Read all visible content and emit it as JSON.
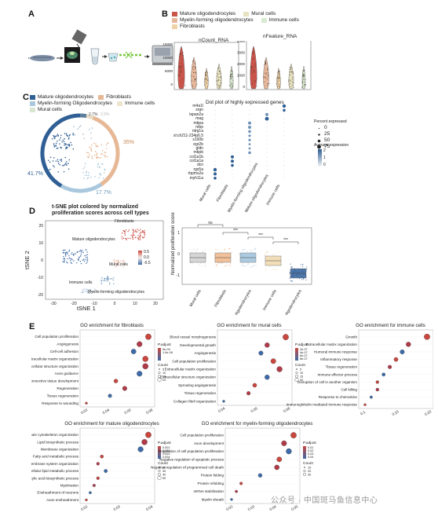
{
  "panels": {
    "A": "A",
    "B": "B",
    "C": "C",
    "D": "D",
    "E": "E"
  },
  "colors": {
    "mature": "#3a6ea8",
    "myelin": "#b7d3e2",
    "fibro": "#e0aa84",
    "mural": "#a8c7b4",
    "immune": "#d7d5a8",
    "red": "#c9473e",
    "legend_mature_b": "#c9544a",
    "legend_myelin_b": "#e6b79a",
    "legend_fibro_b": "#efd3a8",
    "legend_mural_b": "#e7e3c0",
    "legend_immune_b": "#d7ead0"
  },
  "panelB": {
    "legend": [
      "Mature oligodendrocytes",
      "Myelin-forming oligodendrocytes",
      "Fibroblasts",
      "Mural cells",
      "Immune cells"
    ],
    "ncount_title": "nCount_RNA",
    "nfeature_title": "nFeature_RNA",
    "ncount_ticks": [
      "15000",
      "10000",
      "5000",
      "0"
    ],
    "nfeature_ticks": [
      "4000",
      "3000",
      "2000",
      "1000",
      "0"
    ]
  },
  "panelC": {
    "legend": [
      "Mature oligodendrocytes",
      "Fibroblasts",
      "Myelin-forming Oligodendrocytes",
      "Immune cells",
      "Mural cells"
    ],
    "pct_top": "2.7%",
    "pct_top2": "2.9%",
    "pct_right": "35%",
    "pct_left": "41.7%",
    "pct_bottom": "17.7%"
  },
  "dotplot": {
    "title": "Dot plot of highly expressed genes",
    "genes": [
      "m4a1l",
      "srgn",
      "tspan2a",
      "mag",
      "mbpa",
      "mbp",
      "ntrg1a",
      "sl:ch211-234p6.5",
      "s100b",
      "egr2b",
      "gldn",
      "mbpb",
      "col1a1b",
      "col1a1a",
      "dcn",
      "rgs5a",
      "rbpms2a",
      "myh11a"
    ],
    "groups": [
      "Mural cells",
      "Fibroblasts",
      "Myelin-forming oligodendrocytes",
      "Mature oligodendrocytes",
      "Immune cells"
    ],
    "pct_title": "Percent expressed",
    "pct_values": [
      "0",
      "25",
      "50",
      "75"
    ],
    "avg_title": "Average expression",
    "avg_values": [
      "2",
      "1",
      "0"
    ]
  },
  "panelD": {
    "tsne_title_1": "t-SNE plot colored by normalized",
    "tsne_title_2": "proliferation scores across cell types",
    "xlabel": "tSNE 1",
    "ylabel": "tSNE 2",
    "xticks": [
      "-30",
      "-20",
      "-10",
      "0",
      "10",
      "20"
    ],
    "yticks": [
      "20",
      "10",
      "0",
      "-10",
      "-20"
    ],
    "cluster_labels": [
      "Fibroblasts",
      "Mature oligodendrocytes",
      "Mural cells",
      "Immune cells",
      "Myelin-forming oligodendrocytes"
    ],
    "colorbar": [
      "0.5",
      "0.0",
      "-0.5"
    ],
    "box_ylabel": "Normalized proliferation score",
    "box_yticks": [
      "1",
      "0",
      "-1"
    ],
    "box_groups": [
      "Mural cells",
      "Fibroblasts",
      "Myelin-forming oligodendrocytes",
      "Immune cells",
      "Mature oligodendrocytes"
    ],
    "sig": [
      "ns",
      "***",
      "***",
      "***"
    ]
  },
  "panelE": {
    "fib": {
      "title": "GO enrichment for fibroblasts",
      "terms": [
        "Cell population proliferation",
        "Angiogenesis",
        "Cell-cell adhesion",
        "Extracellular matrix organization",
        "Extracellular structure organization",
        "Axon guidance",
        "Connective tissue development",
        "Regeneration",
        "Tissue regeneration",
        "Response to wounding"
      ],
      "values": [
        0.057,
        0.054,
        0.052,
        0.056,
        0.056,
        0.054,
        0.046,
        0.049,
        0.044,
        0.036
      ],
      "xticks": [
        "0.03",
        "0.04",
        "0.05",
        "0.06"
      ],
      "padj_title": "P.adjust",
      "padj_vals": [
        "5e-09",
        "1.0e-08"
      ],
      "count_title": "Count",
      "count_vals": [
        "5",
        "10",
        "15",
        "20"
      ]
    },
    "mural": {
      "title": "GO enrichment for mural cells",
      "terms": [
        "Blood vessel morphogenesis",
        "Developmental growth",
        "Angiogenesis",
        "Cell population proliferation",
        "Extracellular matrix organization",
        "Extracellular structure organization",
        "Sprouting angiogenesis",
        "Tissue regeneration",
        "Collagen fibril organization"
      ],
      "values": [
        0.05,
        0.047,
        0.046,
        0.048,
        0.049,
        0.047,
        0.045,
        0.044,
        0.04
      ],
      "xticks": [
        "0.04",
        "0.05",
        "0.06"
      ],
      "padj_title": "P.adjust",
      "padj_vals": [
        "2e-07",
        "4e-07",
        "6e-07",
        "8e-07"
      ],
      "count_title": "Count",
      "count_vals": [
        "5",
        "10",
        "15",
        "20"
      ]
    },
    "immune": {
      "title": "GO enrichment for immune cells",
      "terms": [
        "Growth",
        "Extracellular matrix organization",
        "Humoral immune response",
        "Inflammatory response",
        "Tissue regeneration",
        "Immune effector process",
        "Disruption of cell in another organism",
        "Cell killing",
        "Response to chemokine",
        "Immunoglobulin mediated immune response"
      ],
      "values": [
        0.2,
        0.17,
        0.16,
        0.15,
        0.14,
        0.13,
        0.12,
        0.12,
        0.11,
        0.1
      ],
      "xticks": [
        "0.1",
        "0.15",
        "0.20"
      ],
      "padj_title": "P.adjust",
      "padj_vals": [
        "0.01",
        "0.02",
        "0.03",
        "0.04"
      ],
      "count_title": "Count",
      "count_vals": [
        "2",
        "4",
        "6"
      ]
    },
    "mature": {
      "title": "GO enrichment for mature oligodendrocytes",
      "terms": [
        "Microtubule cytoskeleton organization",
        "Lipid biosynthetic process",
        "Membrane organization",
        "Fatty acid metabolic process",
        "Endomembrane system organization",
        "Cellular lipid metabolic process",
        "Monocarboxylic acid biosynthetic process",
        "Myelination",
        "Ensheathment of neurons",
        "Axon ensheathment"
      ],
      "values": [
        0.044,
        0.043,
        0.042,
        0.032,
        0.031,
        0.033,
        0.031,
        0.03,
        0.029,
        0.028
      ],
      "xticks": [
        "0.02",
        "0.03",
        "0.04"
      ],
      "padj_title": "P.adjust",
      "padj_vals": [
        "0.001",
        "0.002",
        "0.003",
        "0.004"
      ],
      "count_title": "Count",
      "count_vals": [
        "20",
        "30",
        "40",
        "50"
      ],
      "xlabel": "Gene ratio"
    },
    "myelin": {
      "title": "GO enrichment for myelin-forming oligodendrocytes",
      "terms": [
        "Cell population proliferation",
        "Axon development",
        "Regulation of cell population proliferation",
        "Negative regulation of apoptotic process",
        "Negative regulation of programmed cell death",
        "Protein folding",
        "Protein refolding",
        "mRNA stabilization",
        "Myelin sheath"
      ],
      "values": [
        0.05,
        0.046,
        0.048,
        0.044,
        0.043,
        0.036,
        0.028,
        0.026,
        0.024
      ],
      "xticks": [
        "0.02",
        "0.03",
        "0.04",
        "0.05"
      ],
      "padj_title": "P.adjust",
      "padj_vals": [
        "0.01",
        "0.02",
        "0.03",
        "0.04"
      ],
      "count_title": "Count",
      "count_vals": [
        "10",
        "20",
        "30"
      ],
      "xlabel": "Gene ratio"
    }
  },
  "watermark": "公众号 · 中国斑马鱼信息中心"
}
